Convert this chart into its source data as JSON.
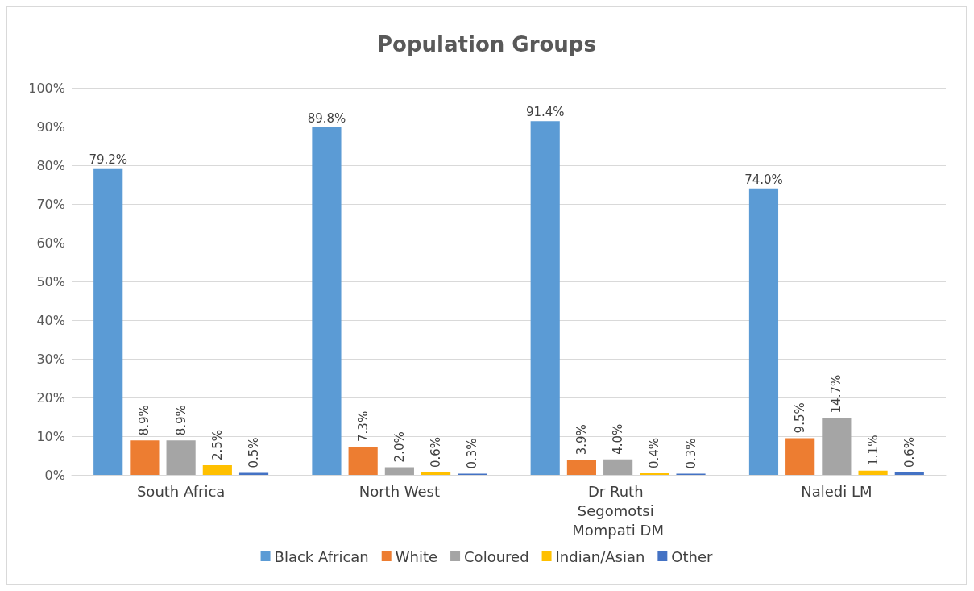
{
  "chart_data": {
    "type": "bar",
    "title": "Population Groups",
    "categories": [
      "South Africa",
      "North West",
      "Dr Ruth Segomotsi Mompati DM",
      "Naledi LM"
    ],
    "series": [
      {
        "name": "Black African",
        "color": "#5b9bd5",
        "values": [
          79.2,
          89.8,
          91.4,
          74.0
        ],
        "value_labels": [
          "79.2%",
          "89.8%",
          "91.4%",
          "74.0%"
        ]
      },
      {
        "name": "White",
        "color": "#ed7d31",
        "values": [
          8.9,
          7.3,
          3.9,
          9.5
        ],
        "value_labels": [
          "8.9%",
          "7.3%",
          "3.9%",
          "9.5%"
        ]
      },
      {
        "name": "Coloured",
        "color": "#a5a5a5",
        "values": [
          8.9,
          2.0,
          4.0,
          14.7
        ],
        "value_labels": [
          "8.9%",
          "2.0%",
          "4.0%",
          "14.7%"
        ]
      },
      {
        "name": "Indian/Asian",
        "color": "#ffc000",
        "values": [
          2.5,
          0.6,
          0.4,
          1.1
        ],
        "value_labels": [
          "2.5%",
          "0.6%",
          "0.4%",
          "1.1%"
        ]
      },
      {
        "name": "Other",
        "color": "#4472c4",
        "values": [
          0.5,
          0.3,
          0.3,
          0.6
        ],
        "value_labels": [
          "0.5%",
          "0.3%",
          "0.3%",
          "0.6%"
        ]
      }
    ],
    "ylim": [
      0,
      100
    ],
    "yticks": [
      {
        "value": 0,
        "label": "0%"
      },
      {
        "value": 10,
        "label": "10%"
      },
      {
        "value": 20,
        "label": "20%"
      },
      {
        "value": 30,
        "label": "30%"
      },
      {
        "value": 40,
        "label": "40%"
      },
      {
        "value": 50,
        "label": "50%"
      },
      {
        "value": 60,
        "label": "60%"
      },
      {
        "value": 70,
        "label": "70%"
      },
      {
        "value": 80,
        "label": "80%"
      },
      {
        "value": 90,
        "label": "90%"
      },
      {
        "value": 100,
        "label": "100%"
      }
    ],
    "grid": "y",
    "legend": "bottom"
  }
}
